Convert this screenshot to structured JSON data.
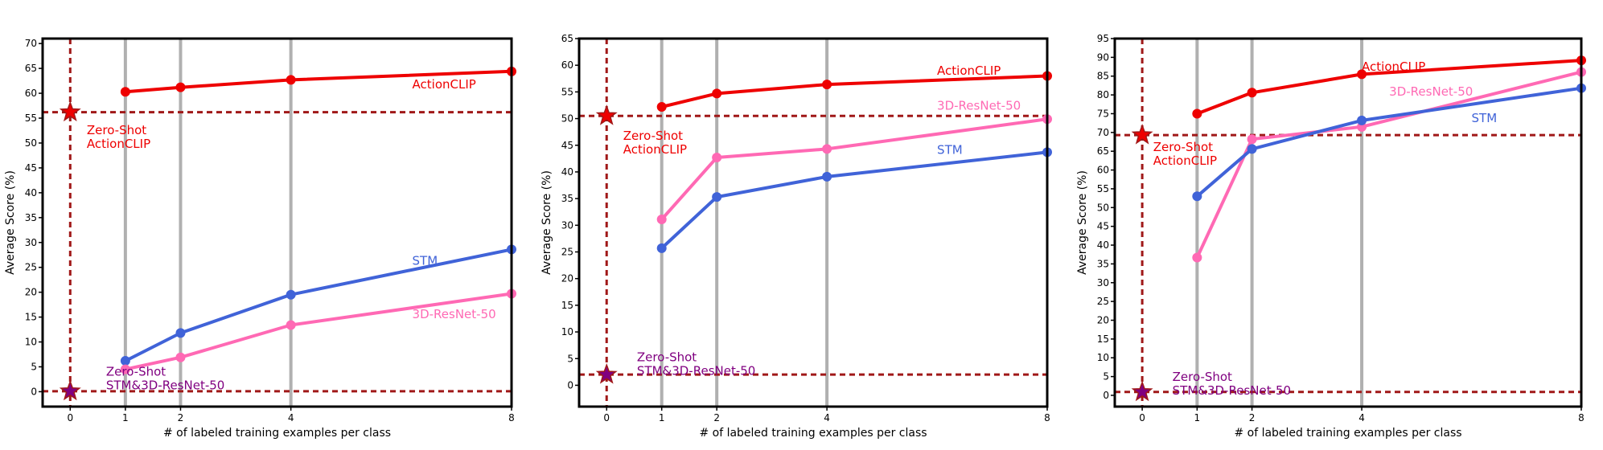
{
  "chart_data": [
    {
      "type": "line",
      "xlabel": "# of labeled training examples per class",
      "ylabel": "Average Score (%)",
      "xlim": [
        -0.5,
        8
      ],
      "ylim": [
        -3,
        71
      ],
      "xticks": [
        0,
        1,
        2,
        4,
        8
      ],
      "yticks": [
        0,
        5,
        10,
        15,
        20,
        25,
        30,
        35,
        40,
        45,
        50,
        55,
        60,
        65,
        70
      ],
      "vgrid": [
        1,
        2,
        4
      ],
      "series": [
        {
          "name": "ActionCLIP",
          "color": "#ee0000",
          "x": [
            1,
            2,
            4,
            8
          ],
          "y": [
            60.3,
            61.2,
            62.7,
            64.4
          ],
          "label_at": [
            6.2,
            61.0
          ]
        },
        {
          "name": "STM",
          "color": "#4063d8",
          "x": [
            1,
            2,
            4,
            8
          ],
          "y": [
            6.2,
            11.8,
            19.5,
            28.6
          ],
          "label_at": [
            6.2,
            25.5
          ]
        },
        {
          "name": "3D-ResNet-50",
          "color": "#ff69b4",
          "x": [
            1,
            2,
            4,
            8
          ],
          "y": [
            4.5,
            6.9,
            13.4,
            19.7
          ],
          "label_at": [
            6.2,
            14.8
          ]
        }
      ],
      "zero_shot": [
        {
          "value": 56.2,
          "color": "#ee0000",
          "label": [
            "Zero-Shot",
            "ActionCLIP"
          ],
          "label_at": [
            0.3,
            51.8
          ]
        },
        {
          "value": 0.1,
          "color": "#800080",
          "label": [
            "Zero-Shot",
            "STM&3D-ResNet-50"
          ],
          "label_at": [
            0.65,
            3.2
          ]
        }
      ]
    },
    {
      "type": "line",
      "xlabel": "# of labeled training examples per class",
      "ylabel": "Average Score (%)",
      "xlim": [
        -0.5,
        8
      ],
      "ylim": [
        -4,
        65
      ],
      "xticks": [
        0,
        1,
        2,
        4,
        8
      ],
      "yticks": [
        0,
        5,
        10,
        15,
        20,
        25,
        30,
        35,
        40,
        45,
        50,
        55,
        60,
        65
      ],
      "vgrid": [
        1,
        2,
        4
      ],
      "series": [
        {
          "name": "ActionCLIP",
          "color": "#ee0000",
          "x": [
            1,
            2,
            4,
            8
          ],
          "y": [
            52.2,
            54.7,
            56.4,
            58.0
          ],
          "label_at": [
            6.0,
            58.2
          ]
        },
        {
          "name": "3D-ResNet-50",
          "color": "#ff69b4",
          "x": [
            1,
            2,
            4,
            8
          ],
          "y": [
            31.1,
            42.7,
            44.3,
            49.9
          ],
          "label_at": [
            6.0,
            51.7
          ]
        },
        {
          "name": "STM",
          "color": "#4063d8",
          "x": [
            1,
            2,
            4,
            8
          ],
          "y": [
            25.7,
            35.3,
            39.1,
            43.7
          ],
          "label_at": [
            6.0,
            43.4
          ]
        }
      ],
      "zero_shot": [
        {
          "value": 50.5,
          "color": "#ee0000",
          "label": [
            "Zero-Shot",
            "ActionCLIP"
          ],
          "label_at": [
            0.3,
            46.0
          ]
        },
        {
          "value": 2.0,
          "color": "#800080",
          "label": [
            "Zero-Shot",
            "STM&3D-ResNet-50"
          ],
          "label_at": [
            0.55,
            4.5
          ]
        }
      ]
    },
    {
      "type": "line",
      "xlabel": "# of labeled training examples per class",
      "ylabel": "Average Score (%)",
      "xlim": [
        -0.5,
        8
      ],
      "ylim": [
        -3,
        95
      ],
      "xticks": [
        0,
        1,
        2,
        4,
        8
      ],
      "yticks": [
        0,
        5,
        10,
        15,
        20,
        25,
        30,
        35,
        40,
        45,
        50,
        55,
        60,
        65,
        70,
        75,
        80,
        85,
        90,
        95
      ],
      "vgrid": [
        1,
        2,
        4
      ],
      "series": [
        {
          "name": "ActionCLIP",
          "color": "#ee0000",
          "x": [
            1,
            2,
            4,
            8
          ],
          "y": [
            75.0,
            80.6,
            85.5,
            89.2
          ],
          "label_at": [
            4.0,
            86.4
          ]
        },
        {
          "name": "3D-ResNet-50",
          "color": "#ff69b4",
          "x": [
            1,
            2,
            4,
            8
          ],
          "y": [
            36.7,
            68.2,
            71.5,
            86.1
          ],
          "label_at": [
            4.5,
            79.8
          ]
        },
        {
          "name": "STM",
          "color": "#4063d8",
          "x": [
            1,
            2,
            4,
            8
          ],
          "y": [
            53.0,
            65.6,
            73.2,
            81.8
          ],
          "label_at": [
            6.0,
            72.8
          ]
        }
      ],
      "zero_shot": [
        {
          "value": 69.3,
          "color": "#ee0000",
          "label": [
            "Zero-Shot",
            "ActionCLIP"
          ],
          "label_at": [
            0.2,
            65.0
          ]
        },
        {
          "value": 0.9,
          "color": "#800080",
          "label": [
            "Zero-Shot",
            "STM&3D-ResNet-50"
          ],
          "label_at": [
            0.55,
            3.9
          ]
        }
      ]
    }
  ]
}
